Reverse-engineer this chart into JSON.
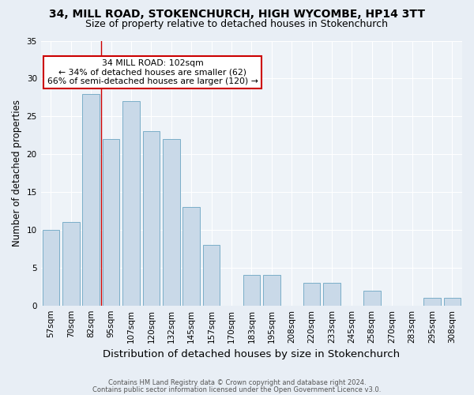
{
  "title1": "34, MILL ROAD, STOKENCHURCH, HIGH WYCOMBE, HP14 3TT",
  "title2": "Size of property relative to detached houses in Stokenchurch",
  "xlabel": "Distribution of detached houses by size in Stokenchurch",
  "ylabel": "Number of detached properties",
  "footnote1": "Contains HM Land Registry data © Crown copyright and database right 2024.",
  "footnote2": "Contains public sector information licensed under the Open Government Licence v3.0.",
  "categories": [
    "57sqm",
    "70sqm",
    "82sqm",
    "95sqm",
    "107sqm",
    "120sqm",
    "132sqm",
    "145sqm",
    "157sqm",
    "170sqm",
    "183sqm",
    "195sqm",
    "208sqm",
    "220sqm",
    "233sqm",
    "245sqm",
    "258sqm",
    "270sqm",
    "283sqm",
    "295sqm",
    "308sqm"
  ],
  "values": [
    10,
    11,
    28,
    22,
    27,
    23,
    22,
    13,
    8,
    0,
    4,
    4,
    0,
    3,
    3,
    0,
    2,
    0,
    0,
    1,
    1
  ],
  "bar_color": "#c9d9e8",
  "bar_edge_color": "#7aaec8",
  "annotation_text_line1": "34 MILL ROAD: 102sqm",
  "annotation_text_line2": "← 34% of detached houses are smaller (62)",
  "annotation_text_line3": "66% of semi-detached houses are larger (120) →",
  "annotation_box_facecolor": "#ffffff",
  "annotation_box_edgecolor": "#cc0000",
  "vline_x": 2.5,
  "ylim": [
    0,
    35
  ],
  "yticks": [
    0,
    5,
    10,
    15,
    20,
    25,
    30,
    35
  ],
  "bg_color": "#e8eef5",
  "plot_bg_color": "#eef3f8",
  "grid_color": "#ffffff",
  "title_fontsize": 10,
  "subtitle_fontsize": 9,
  "tick_fontsize": 7.5,
  "ylabel_fontsize": 8.5,
  "xlabel_fontsize": 9.5,
  "footnote_fontsize": 6.0
}
